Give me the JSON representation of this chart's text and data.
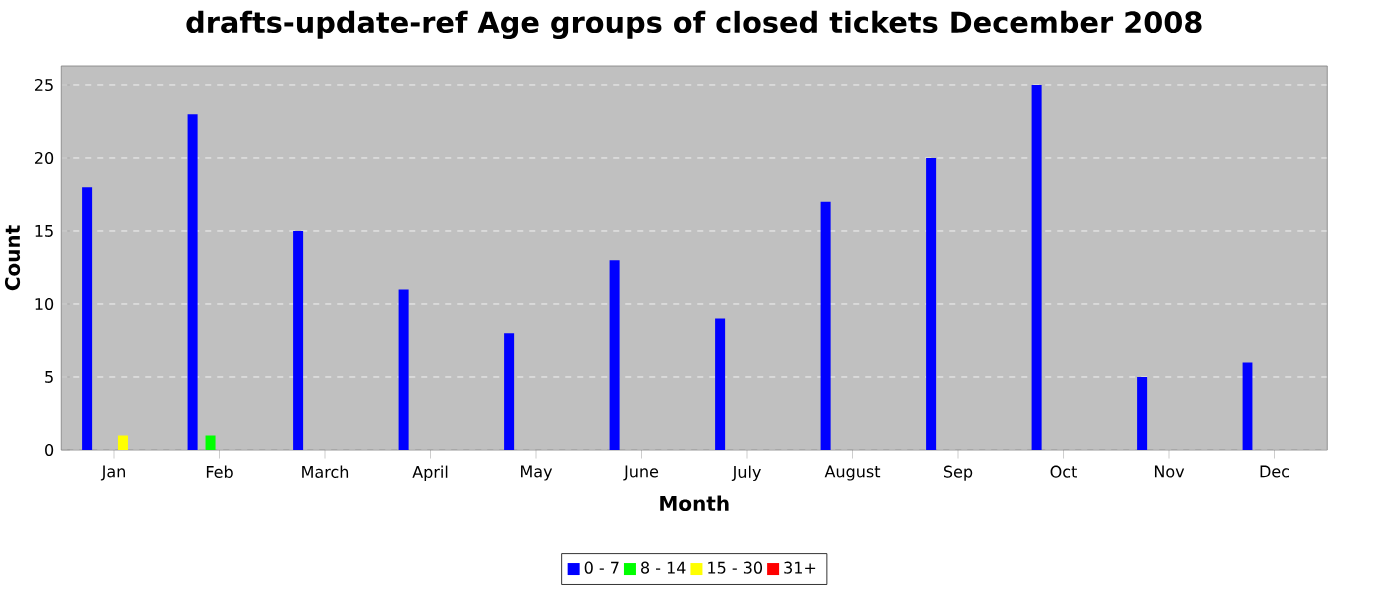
{
  "chart_data": {
    "type": "bar",
    "title": "drafts-update-ref Age groups of closed tickets December 2008",
    "xlabel": "Month",
    "ylabel": "Count",
    "categories": [
      "Jan",
      "Feb",
      "March",
      "April",
      "May",
      "June",
      "July",
      "August",
      "Sep",
      "Oct",
      "Nov",
      "Dec"
    ],
    "series": [
      {
        "name": "0 - 7",
        "color": "#0000ff",
        "values": [
          18,
          23,
          15,
          11,
          8,
          13,
          9,
          17,
          20,
          25,
          5,
          6
        ]
      },
      {
        "name": "8 - 14",
        "color": "#00ff00",
        "values": [
          0,
          1,
          0,
          0,
          0,
          0,
          0,
          0,
          0,
          0,
          0,
          0
        ]
      },
      {
        "name": "15 - 30",
        "color": "#ffff00",
        "values": [
          1,
          0,
          0,
          0,
          0,
          0,
          0,
          0,
          0,
          0,
          0,
          0
        ]
      },
      {
        "name": "31+",
        "color": "#ff0000",
        "values": [
          0,
          0,
          0,
          0,
          0,
          0,
          0,
          0,
          0,
          0,
          0,
          0
        ]
      }
    ],
    "ylim": [
      0,
      26.3
    ],
    "yticks": [
      0,
      5,
      10,
      15,
      20,
      25
    ],
    "grid": "y",
    "legend": "bottom"
  }
}
